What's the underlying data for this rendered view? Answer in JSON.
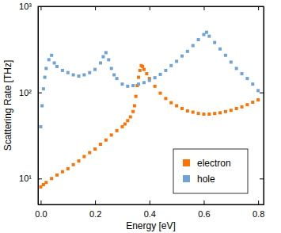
{
  "chart_data": {
    "type": "scatter",
    "x_label": "Energy [eV]",
    "y_label": "Scattering Rate [THz]",
    "log": "y",
    "xlim": [
      -0.01,
      0.82
    ],
    "ylim": [
      5,
      1000
    ],
    "xticks": [
      {
        "value": 0,
        "label": "0.0"
      },
      {
        "value": 0.2,
        "label": "0.2"
      },
      {
        "value": 0.4,
        "label": "0.4"
      },
      {
        "value": 0.6,
        "label": "0.6"
      },
      {
        "value": 0.8,
        "label": "0.8"
      }
    ],
    "yticks": [
      {
        "value": 10,
        "label": "10¹"
      },
      {
        "value": 100,
        "label": "10²"
      },
      {
        "value": 1000,
        "label": "10³"
      }
    ],
    "legend": "lower right",
    "marker": "square",
    "series": [
      {
        "name": "electron",
        "color": "#f97306",
        "x": [
          0.0,
          0.01,
          0.02,
          0.04,
          0.06,
          0.08,
          0.1,
          0.12,
          0.14,
          0.16,
          0.18,
          0.2,
          0.22,
          0.24,
          0.26,
          0.28,
          0.3,
          0.31,
          0.32,
          0.33,
          0.34,
          0.345,
          0.35,
          0.355,
          0.36,
          0.365,
          0.37,
          0.375,
          0.38,
          0.39,
          0.4,
          0.42,
          0.44,
          0.46,
          0.48,
          0.5,
          0.52,
          0.54,
          0.56,
          0.58,
          0.6,
          0.62,
          0.64,
          0.66,
          0.68,
          0.7,
          0.72,
          0.74,
          0.76,
          0.78,
          0.8
        ],
        "values": [
          8,
          8.5,
          9,
          10,
          11,
          12,
          13,
          14.5,
          16,
          18,
          20,
          22,
          25,
          28,
          32,
          36,
          40,
          43,
          47,
          52,
          60,
          70,
          90,
          120,
          150,
          180,
          205,
          200,
          185,
          165,
          145,
          118,
          98,
          85,
          76,
          70,
          65,
          61,
          59,
          57,
          56,
          56,
          57,
          58,
          60,
          62,
          65,
          68,
          72,
          77,
          82
        ]
      },
      {
        "name": "hole",
        "color": "#6fa3d6",
        "x": [
          0.0,
          0.005,
          0.01,
          0.015,
          0.02,
          0.03,
          0.04,
          0.05,
          0.06,
          0.08,
          0.1,
          0.12,
          0.14,
          0.16,
          0.18,
          0.2,
          0.22,
          0.23,
          0.24,
          0.25,
          0.26,
          0.27,
          0.28,
          0.3,
          0.32,
          0.34,
          0.36,
          0.38,
          0.4,
          0.42,
          0.44,
          0.46,
          0.48,
          0.5,
          0.52,
          0.54,
          0.56,
          0.58,
          0.6,
          0.61,
          0.62,
          0.64,
          0.66,
          0.68,
          0.7,
          0.72,
          0.74,
          0.76,
          0.78,
          0.8
        ],
        "values": [
          40,
          70,
          110,
          150,
          190,
          240,
          270,
          220,
          200,
          180,
          170,
          160,
          155,
          160,
          170,
          185,
          220,
          260,
          290,
          240,
          190,
          160,
          145,
          125,
          118,
          120,
          125,
          130,
          138,
          148,
          162,
          180,
          205,
          230,
          265,
          300,
          350,
          410,
          470,
          500,
          450,
          380,
          320,
          270,
          225,
          190,
          165,
          145,
          125,
          105
        ]
      }
    ]
  }
}
